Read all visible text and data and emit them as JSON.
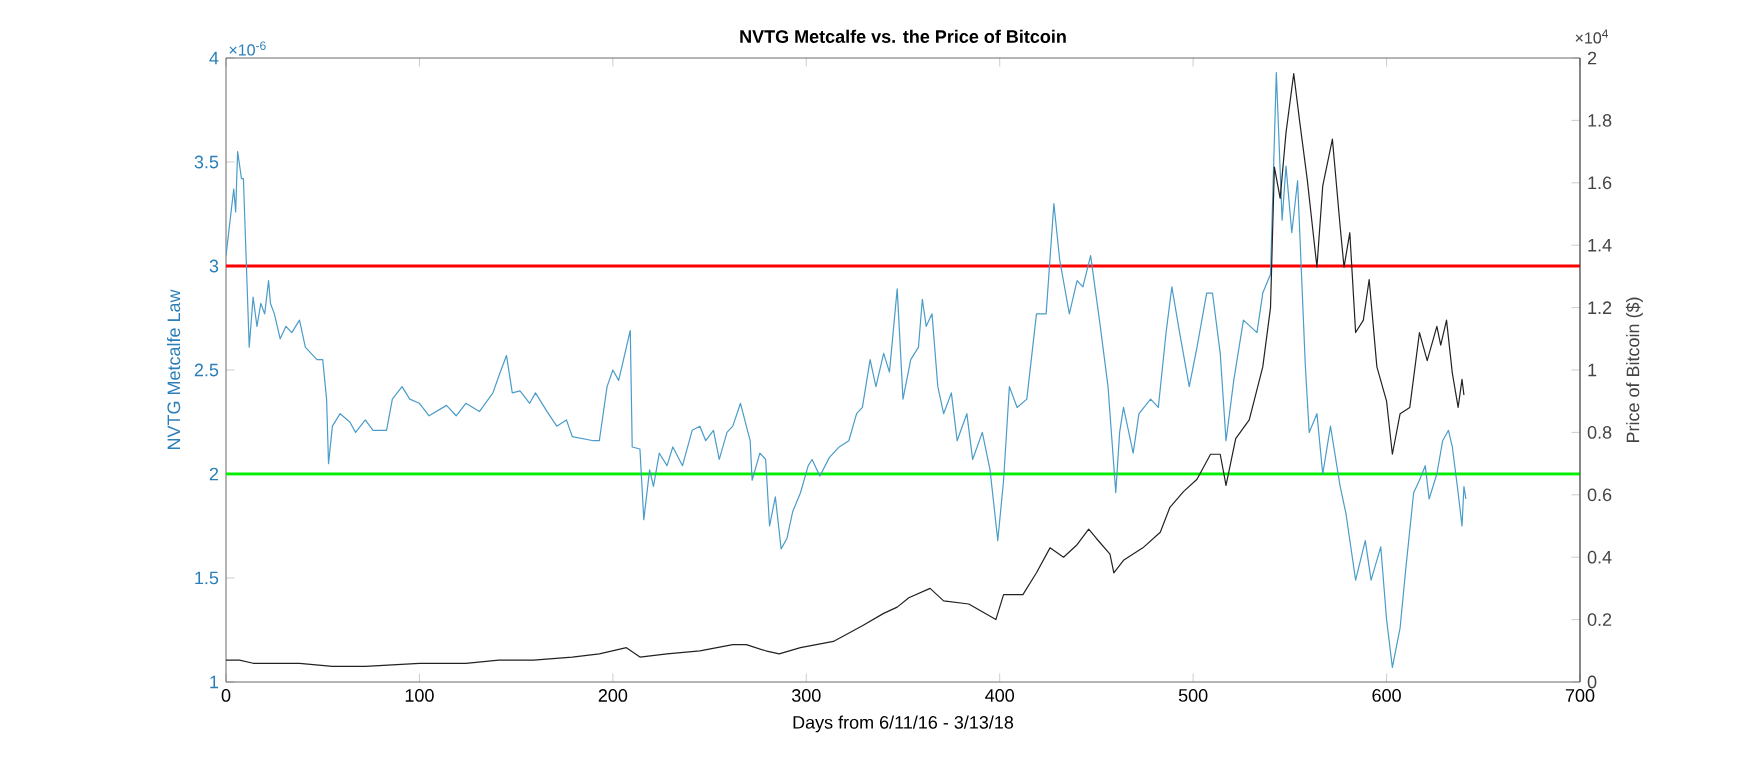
{
  "chart_data": {
    "type": "line",
    "title": "NVTG Metcalfe vs. the Price of Bitcoin",
    "xlabel": "Days from 6/11/16 - 3/13/18",
    "ylabel": "NVTG Metcalfe Law",
    "y2label": "Price of Bitcoin ($)",
    "annotations": [
      "×10$^{-6}$",
      "×10$^{4}$"
    ],
    "xlim": [
      0,
      700
    ],
    "xticks": [
      0,
      100,
      200,
      300,
      400,
      500,
      600,
      700
    ],
    "ylim": [
      1,
      4
    ],
    "yticks": [
      1,
      1.5,
      2,
      2.5,
      3,
      3.5,
      4
    ],
    "y2lim": [
      0,
      2
    ],
    "y2ticks": [
      0,
      0.2,
      0.4,
      0.6,
      0.8,
      1,
      1.2,
      1.4,
      1.6,
      1.8,
      2
    ],
    "ref_lines": [
      {
        "axis": "y",
        "value": 3,
        "color": "#ff0000"
      },
      {
        "axis": "y",
        "value": 2,
        "color": "#00ee00"
      }
    ],
    "series": [
      {
        "color": "#4a9cc9",
        "x": [
          0,
          3,
          4,
          5,
          6,
          8,
          9,
          12,
          14,
          16,
          18,
          20,
          22,
          23,
          25,
          28,
          31,
          34,
          38,
          41,
          47,
          50,
          52,
          53,
          55,
          59,
          64,
          67,
          72,
          76,
          83,
          86,
          91,
          95,
          100,
          105,
          114,
          119,
          124,
          131,
          138,
          141,
          145,
          148,
          152,
          157,
          160,
          166,
          171,
          176,
          179,
          190,
          193,
          197,
          200,
          203,
          205,
          209,
          210,
          214,
          216,
          219,
          221,
          224,
          228,
          231,
          236,
          241,
          245,
          248,
          252,
          255,
          259,
          262,
          266,
          269,
          271,
          272,
          276,
          279,
          281,
          284,
          287,
          290,
          293,
          297,
          301,
          303,
          307,
          312,
          317,
          322,
          326,
          329,
          333,
          336,
          340,
          343,
          347,
          350,
          354,
          358,
          360,
          362,
          365,
          368,
          371,
          375,
          378,
          383,
          386,
          391,
          395,
          399,
          402,
          405,
          409,
          414,
          419,
          424,
          428,
          431,
          436,
          440,
          443,
          447,
          452,
          456,
          460,
          462,
          464,
          469,
          472,
          478,
          482,
          486,
          489,
          493,
          498,
          502,
          507,
          510,
          514,
          517,
          521,
          526,
          533,
          536,
          540,
          543,
          546,
          548,
          551,
          554,
          558,
          560,
          564,
          567,
          571,
          576,
          579,
          584,
          589,
          592,
          597,
          600,
          603,
          607,
          610,
          614,
          617,
          620,
          622,
          626,
          629,
          632,
          634,
          637,
          639,
          640,
          641
        ],
        "values": [
          3.05,
          3.29,
          3.37,
          3.26,
          3.55,
          3.42,
          3.42,
          2.61,
          2.85,
          2.71,
          2.82,
          2.77,
          2.93,
          2.82,
          2.77,
          2.65,
          2.71,
          2.68,
          2.74,
          2.61,
          2.55,
          2.55,
          2.36,
          2.05,
          2.23,
          2.29,
          2.25,
          2.2,
          2.26,
          2.21,
          2.21,
          2.36,
          2.42,
          2.36,
          2.34,
          2.28,
          2.33,
          2.28,
          2.34,
          2.3,
          2.39,
          2.47,
          2.57,
          2.39,
          2.4,
          2.34,
          2.39,
          2.3,
          2.23,
          2.26,
          2.18,
          2.16,
          2.16,
          2.42,
          2.5,
          2.45,
          2.53,
          2.69,
          2.13,
          2.12,
          1.78,
          2.02,
          1.94,
          2.1,
          2.04,
          2.13,
          2.04,
          2.21,
          2.23,
          2.16,
          2.21,
          2.07,
          2.2,
          2.23,
          2.34,
          2.23,
          2.16,
          1.97,
          2.1,
          2.07,
          1.75,
          1.89,
          1.64,
          1.69,
          1.82,
          1.91,
          2.04,
          2.07,
          1.99,
          2.08,
          2.13,
          2.16,
          2.29,
          2.32,
          2.55,
          2.42,
          2.58,
          2.49,
          2.89,
          2.36,
          2.55,
          2.61,
          2.84,
          2.71,
          2.77,
          2.42,
          2.29,
          2.39,
          2.16,
          2.29,
          2.07,
          2.2,
          2.02,
          1.68,
          1.97,
          2.42,
          2.32,
          2.36,
          2.77,
          2.77,
          3.3,
          3.03,
          2.77,
          2.93,
          2.9,
          3.05,
          2.71,
          2.42,
          1.91,
          2.2,
          2.32,
          2.1,
          2.29,
          2.36,
          2.32,
          2.68,
          2.9,
          2.68,
          2.42,
          2.61,
          2.87,
          2.87,
          2.58,
          2.16,
          2.45,
          2.74,
          2.68,
          2.87,
          2.96,
          3.93,
          3.22,
          3.48,
          3.16,
          3.41,
          2.52,
          2.2,
          2.29,
          2.0,
          2.23,
          1.94,
          1.81,
          1.49,
          1.68,
          1.49,
          1.65,
          1.3,
          1.07,
          1.26,
          1.55,
          1.91,
          1.97,
          2.04,
          1.88,
          2.0,
          2.16,
          2.21,
          2.13,
          1.91,
          1.75,
          1.94,
          1.88
        ]
      },
      {
        "color": "#222222",
        "axis": "y2",
        "x": [
          0,
          7,
          14,
          38,
          55,
          72,
          100,
          124,
          141,
          159,
          179,
          193,
          207,
          214,
          228,
          245,
          262,
          269,
          279,
          286,
          297,
          314,
          329,
          340,
          347,
          353,
          364,
          371,
          384,
          398,
          402,
          412,
          419,
          426,
          433,
          440,
          446,
          450,
          457,
          459,
          464,
          474,
          483,
          488,
          495,
          502,
          509,
          514,
          517,
          522,
          529,
          536,
          540,
          542,
          545,
          548,
          552,
          555,
          559,
          564,
          567,
          572,
          576,
          578,
          581,
          584,
          588,
          591,
          595,
          600,
          603,
          607,
          612,
          617,
          621,
          626,
          628,
          631,
          634,
          637,
          639,
          640
        ],
        "values": [
          0.07,
          0.07,
          0.06,
          0.06,
          0.05,
          0.05,
          0.06,
          0.06,
          0.07,
          0.07,
          0.08,
          0.09,
          0.11,
          0.08,
          0.09,
          0.1,
          0.12,
          0.12,
          0.1,
          0.09,
          0.11,
          0.13,
          0.18,
          0.22,
          0.24,
          0.27,
          0.3,
          0.26,
          0.25,
          0.2,
          0.28,
          0.28,
          0.35,
          0.43,
          0.4,
          0.44,
          0.49,
          0.46,
          0.41,
          0.35,
          0.39,
          0.43,
          0.48,
          0.56,
          0.61,
          0.65,
          0.73,
          0.73,
          0.63,
          0.78,
          0.84,
          1.01,
          1.2,
          1.65,
          1.55,
          1.76,
          1.95,
          1.8,
          1.61,
          1.33,
          1.59,
          1.74,
          1.46,
          1.33,
          1.44,
          1.12,
          1.16,
          1.29,
          1.01,
          0.9,
          0.73,
          0.86,
          0.88,
          1.12,
          1.03,
          1.14,
          1.08,
          1.16,
          0.99,
          0.88,
          0.97,
          0.92
        ]
      }
    ]
  }
}
